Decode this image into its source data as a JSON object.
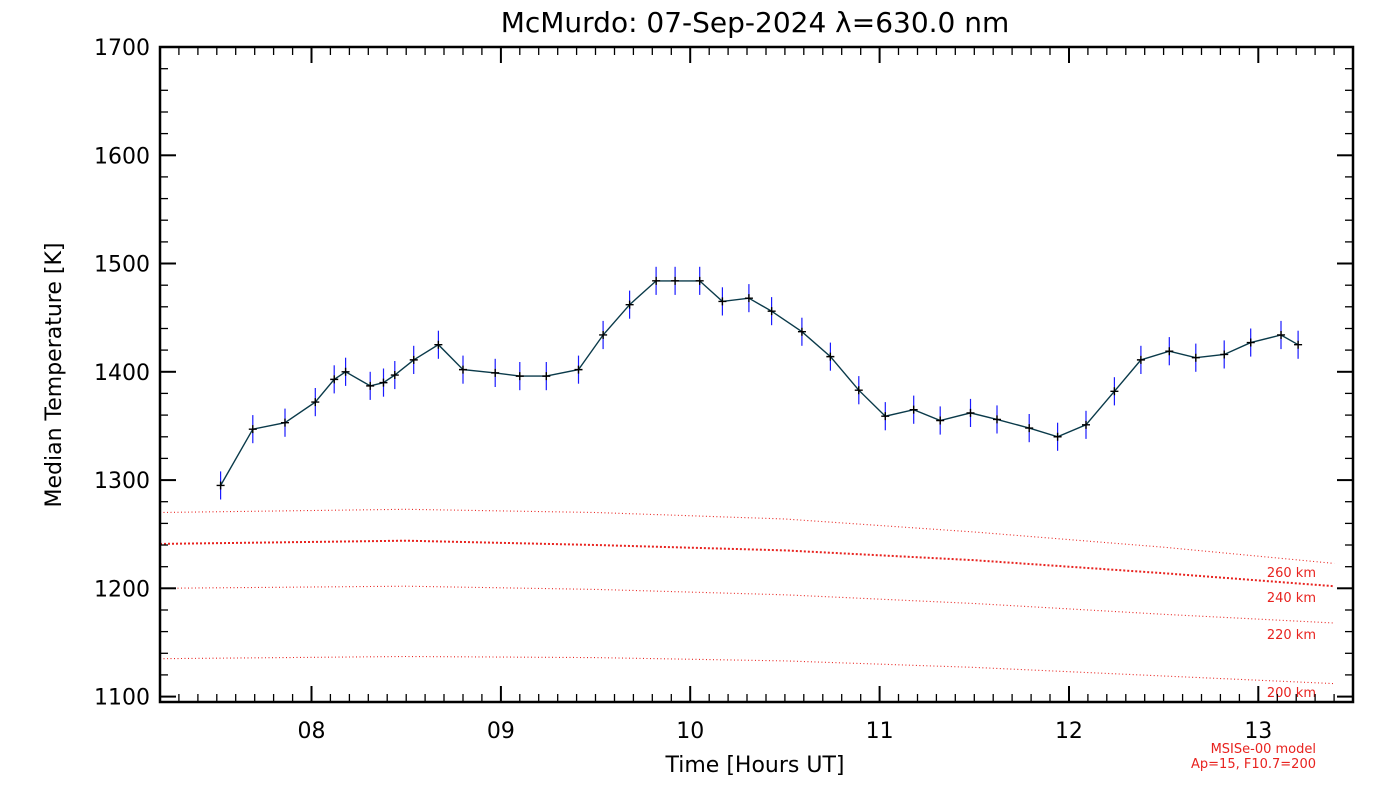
{
  "chart_data": {
    "type": "line",
    "title": "McMurdo: 07-Sep-2024 λ=630.0 nm",
    "xlabel": "Time [Hours UT]",
    "ylabel": "Median Temperature [K]",
    "xlim": [
      7.2,
      13.5
    ],
    "ylim": [
      1095,
      1700
    ],
    "x_ticks": [
      8,
      9,
      10,
      11,
      12,
      13
    ],
    "x_tick_labels": [
      "08",
      "09",
      "10",
      "11",
      "12",
      "13"
    ],
    "y_ticks": [
      1100,
      1200,
      1300,
      1400,
      1500,
      1600,
      1700
    ],
    "y_tick_labels": [
      "1100",
      "1200",
      "1300",
      "1400",
      "1500",
      "1600",
      "1700"
    ],
    "grid": false,
    "series": [
      {
        "color": "#0a3a4a",
        "errorbar_color": "#1a1aff",
        "error": 13,
        "x": [
          7.52,
          7.69,
          7.86,
          8.02,
          8.12,
          8.18,
          8.31,
          8.38,
          8.44,
          8.54,
          8.67,
          8.8,
          8.97,
          9.1,
          9.24,
          9.41,
          9.54,
          9.68,
          9.82,
          9.92,
          10.05,
          10.17,
          10.31,
          10.43,
          10.59,
          10.74,
          10.89,
          11.03,
          11.18,
          11.32,
          11.48,
          11.62,
          11.79,
          11.94,
          12.09,
          12.24,
          12.38,
          12.53,
          12.67,
          12.82,
          12.96,
          13.12,
          13.21
        ],
        "y": [
          1295,
          1347,
          1353,
          1372,
          1393,
          1400,
          1387,
          1390,
          1397,
          1411,
          1425,
          1402,
          1399,
          1396,
          1396,
          1402,
          1434,
          1462,
          1484,
          1484,
          1484,
          1465,
          1468,
          1456,
          1437,
          1414,
          1383,
          1359,
          1365,
          1355,
          1362,
          1356,
          1348,
          1340,
          1351,
          1382,
          1411,
          1419,
          1413,
          1416,
          1427,
          1434,
          1425
        ]
      }
    ],
    "model_curves": [
      {
        "label": "260 km",
        "color": "#e8231f",
        "x": [
          7.2,
          8.5,
          9.5,
          10.5,
          11.5,
          12.5,
          13.4
        ],
        "y": [
          1270,
          1273,
          1270,
          1264,
          1252,
          1238,
          1223
        ]
      },
      {
        "label": "240 km",
        "color": "#e8231f",
        "x": [
          7.2,
          8.5,
          9.5,
          10.5,
          11.5,
          12.5,
          13.4
        ],
        "y": [
          1241,
          1244,
          1240,
          1235,
          1226,
          1214,
          1202
        ]
      },
      {
        "label": "220 km",
        "color": "#e8231f",
        "x": [
          7.2,
          8.5,
          9.5,
          10.5,
          11.5,
          12.5,
          13.4
        ],
        "y": [
          1200,
          1202,
          1199,
          1194,
          1186,
          1176,
          1168
        ]
      },
      {
        "label": "200 km",
        "color": "#e8231f",
        "x": [
          7.2,
          8.5,
          9.5,
          10.5,
          11.5,
          12.5,
          13.4
        ],
        "y": [
          1135,
          1137,
          1136,
          1133,
          1127,
          1119,
          1112
        ]
      }
    ],
    "model_note": [
      "MSISe-00 model",
      "Ap=15, F10.7=200"
    ]
  }
}
